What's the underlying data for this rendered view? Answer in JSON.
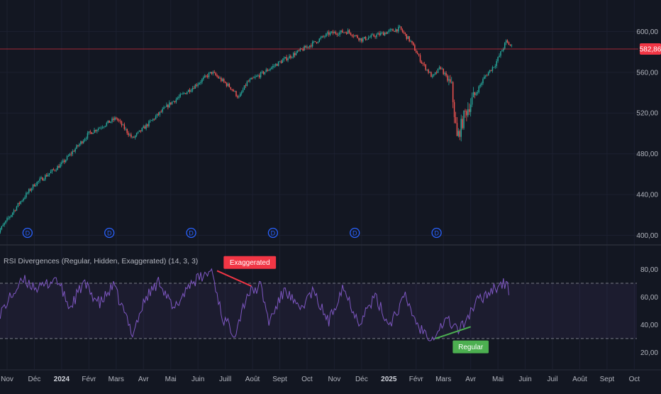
{
  "chart_data": [
    {
      "type": "candlestick",
      "title": "",
      "price_axis": {
        "ticks": [
          {
            "v": 400,
            "label": "400,00"
          },
          {
            "v": 440,
            "label": "440,00"
          },
          {
            "v": 480,
            "label": "480,00"
          },
          {
            "v": 520,
            "label": "520,00"
          },
          {
            "v": 560,
            "label": "560,00"
          },
          {
            "v": 600,
            "label": "600,00"
          }
        ],
        "ylim": [
          392,
          617
        ]
      },
      "last_price": {
        "value": 582.86,
        "label": "582,86",
        "color": "#f23645"
      },
      "dividend_marker_label": "D",
      "dividend_months": [
        0.75,
        3.75,
        6.75,
        9.75,
        12.75,
        15.75
      ],
      "trend_anchors": [
        {
          "m": -0.4,
          "v": 400
        },
        {
          "m": 0.4,
          "v": 430
        },
        {
          "m": 1,
          "v": 450
        },
        {
          "m": 2,
          "v": 470
        },
        {
          "m": 3,
          "v": 500
        },
        {
          "m": 4,
          "v": 515
        },
        {
          "m": 4.6,
          "v": 495
        },
        {
          "m": 5,
          "v": 505
        },
        {
          "m": 6,
          "v": 530
        },
        {
          "m": 6.8,
          "v": 545
        },
        {
          "m": 7.5,
          "v": 560
        },
        {
          "m": 8.2,
          "v": 545
        },
        {
          "m": 8.5,
          "v": 535
        },
        {
          "m": 8.8,
          "v": 550
        },
        {
          "m": 9.3,
          "v": 558
        },
        {
          "m": 10,
          "v": 570
        },
        {
          "m": 11,
          "v": 585
        },
        {
          "m": 11.8,
          "v": 598
        },
        {
          "m": 12.5,
          "v": 600
        },
        {
          "m": 13,
          "v": 592
        },
        {
          "m": 14,
          "v": 600
        },
        {
          "m": 14.4,
          "v": 603
        },
        {
          "m": 14.8,
          "v": 590
        },
        {
          "m": 15.2,
          "v": 570
        },
        {
          "m": 15.6,
          "v": 555
        },
        {
          "m": 15.9,
          "v": 565
        },
        {
          "m": 16.3,
          "v": 545
        },
        {
          "m": 16.5,
          "v": 495
        },
        {
          "m": 16.8,
          "v": 520
        },
        {
          "m": 17.1,
          "v": 535
        },
        {
          "m": 17.5,
          "v": 555
        },
        {
          "m": 17.9,
          "v": 568
        },
        {
          "m": 18.3,
          "v": 590
        },
        {
          "m": 18.55,
          "v": 584
        }
      ],
      "up_color": "#26a69a",
      "down_color": "#ef5350"
    },
    {
      "type": "line",
      "indicator_title": "RSI Divergences (Regular, Hidden, Exaggerated) (14, 3, 3)",
      "rsi_axis": {
        "ticks": [
          {
            "v": 20,
            "label": "20,00"
          },
          {
            "v": 40,
            "label": "40,00"
          },
          {
            "v": 60,
            "label": "60,00"
          },
          {
            "v": 80,
            "label": "80,00"
          }
        ],
        "ylim": [
          12,
          90
        ]
      },
      "band": {
        "upper": 70,
        "lower": 30
      },
      "series_color": "#7e57c2",
      "rsi_anchors": [
        {
          "m": -0.4,
          "v": 32
        },
        {
          "m": -0.2,
          "v": 50
        },
        {
          "m": 0.2,
          "v": 62
        },
        {
          "m": 0.6,
          "v": 72
        },
        {
          "m": 1.2,
          "v": 66
        },
        {
          "m": 1.8,
          "v": 74
        },
        {
          "m": 2.3,
          "v": 52
        },
        {
          "m": 2.8,
          "v": 70
        },
        {
          "m": 3.4,
          "v": 55
        },
        {
          "m": 3.9,
          "v": 68
        },
        {
          "m": 4.6,
          "v": 34
        },
        {
          "m": 5.1,
          "v": 60
        },
        {
          "m": 5.6,
          "v": 72
        },
        {
          "m": 6.1,
          "v": 50
        },
        {
          "m": 6.7,
          "v": 70
        },
        {
          "m": 7.3,
          "v": 76
        },
        {
          "m": 7.5,
          "v": 80
        },
        {
          "m": 7.9,
          "v": 45
        },
        {
          "m": 8.35,
          "v": 34
        },
        {
          "m": 8.8,
          "v": 62
        },
        {
          "m": 9.3,
          "v": 68
        },
        {
          "m": 9.6,
          "v": 42
        },
        {
          "m": 10.2,
          "v": 66
        },
        {
          "m": 10.7,
          "v": 50
        },
        {
          "m": 11.2,
          "v": 64
        },
        {
          "m": 11.8,
          "v": 42
        },
        {
          "m": 12.3,
          "v": 68
        },
        {
          "m": 12.9,
          "v": 42
        },
        {
          "m": 13.5,
          "v": 60
        },
        {
          "m": 14,
          "v": 40
        },
        {
          "m": 14.6,
          "v": 60
        },
        {
          "m": 15.1,
          "v": 38
        },
        {
          "m": 15.6,
          "v": 31
        },
        {
          "m": 16.1,
          "v": 44
        },
        {
          "m": 16.6,
          "v": 36
        },
        {
          "m": 17.2,
          "v": 56
        },
        {
          "m": 17.8,
          "v": 66
        },
        {
          "m": 18.2,
          "v": 70
        },
        {
          "m": 18.45,
          "v": 64
        }
      ],
      "divergences": [
        {
          "kind": "Exaggerated",
          "label": "Exaggerated",
          "color": "#f23645",
          "from": {
            "m": 7.7,
            "v": 79
          },
          "to": {
            "m": 8.95,
            "v": 68
          },
          "label_at": {
            "m": 8.9,
            "v": 85
          },
          "placement": "above"
        },
        {
          "kind": "Regular",
          "label": "Regular",
          "color": "#4caf50",
          "from": {
            "m": 15.7,
            "v": 30
          },
          "to": {
            "m": 17.0,
            "v": 38.5
          },
          "label_at": {
            "m": 17.0,
            "v": 24
          },
          "placement": "below"
        }
      ]
    }
  ],
  "time_axis": {
    "labels": [
      {
        "m": 0,
        "label": "Nov"
      },
      {
        "m": 1,
        "label": "Déc"
      },
      {
        "m": 2,
        "label": "2024"
      },
      {
        "m": 3,
        "label": "Févr"
      },
      {
        "m": 4,
        "label": "Mars"
      },
      {
        "m": 5,
        "label": "Avr"
      },
      {
        "m": 6,
        "label": "Mai"
      },
      {
        "m": 7,
        "label": "Juin"
      },
      {
        "m": 8,
        "label": "Juill"
      },
      {
        "m": 9,
        "label": "Août"
      },
      {
        "m": 10,
        "label": "Sept"
      },
      {
        "m": 11,
        "label": "Oct"
      },
      {
        "m": 12,
        "label": "Nov"
      },
      {
        "m": 13,
        "label": "Déc"
      },
      {
        "m": 14,
        "label": "2025"
      },
      {
        "m": 15,
        "label": "Févr"
      },
      {
        "m": 16,
        "label": "Mars"
      },
      {
        "m": 17,
        "label": "Avr"
      },
      {
        "m": 18,
        "label": "Mai"
      },
      {
        "m": 19,
        "label": "Juin"
      },
      {
        "m": 20,
        "label": "Juil"
      },
      {
        "m": 21,
        "label": "Août"
      },
      {
        "m": 22,
        "label": "Sept"
      },
      {
        "m": 23,
        "label": "Oct"
      }
    ],
    "bold_labels": [
      "2024",
      "2025"
    ]
  }
}
